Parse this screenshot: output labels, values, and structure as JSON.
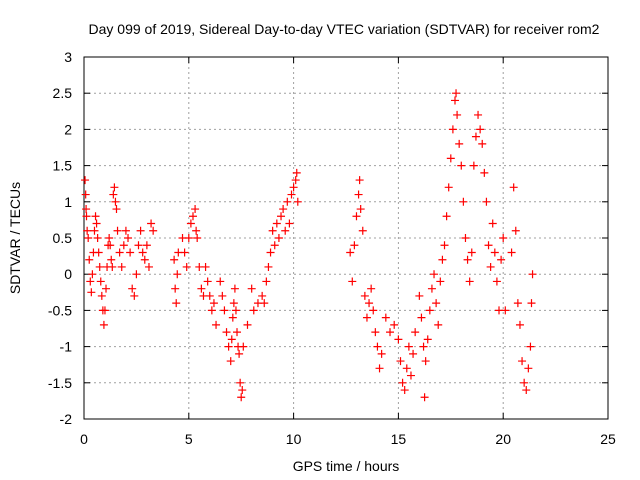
{
  "chart_data": {
    "type": "scatter",
    "title": "Day 099 of 2019, Sidereal Day-to-day VTEC variation (SDTVAR) for receiver rom2",
    "xlabel": "GPS time / hours",
    "ylabel": "SDTVAR / TECUs",
    "xlim": [
      0,
      25
    ],
    "ylim": [
      -2,
      3
    ],
    "xticks": [
      0,
      5,
      10,
      15,
      20,
      25
    ],
    "yticks": [
      -2,
      -1.5,
      -1,
      -0.5,
      0,
      0.5,
      1,
      1.5,
      2,
      2.5,
      3
    ],
    "xtick_labels": [
      "0",
      "5",
      "10",
      "15",
      "20",
      "25"
    ],
    "ytick_labels": [
      "-2",
      "-1.5",
      "-1",
      "-0.5",
      "0",
      "0.5",
      "1",
      "1.5",
      "2",
      "2.5",
      "3"
    ],
    "grid": true,
    "marker": "plus",
    "color": "#ff0000",
    "series": [
      {
        "name": "rom2",
        "points": [
          [
            0.05,
            1.3
          ],
          [
            0.08,
            1.1
          ],
          [
            0.1,
            0.9
          ],
          [
            0.12,
            0.8
          ],
          [
            0.15,
            0.6
          ],
          [
            0.2,
            0.5
          ],
          [
            0.25,
            0.2
          ],
          [
            0.3,
            -0.1
          ],
          [
            0.35,
            -0.25
          ],
          [
            0.4,
            0.0
          ],
          [
            0.45,
            0.3
          ],
          [
            0.5,
            0.6
          ],
          [
            0.55,
            0.8
          ],
          [
            0.6,
            0.7
          ],
          [
            0.65,
            0.5
          ],
          [
            0.7,
            0.3
          ],
          [
            0.75,
            0.1
          ],
          [
            0.8,
            -0.1
          ],
          [
            0.85,
            -0.3
          ],
          [
            0.9,
            -0.5
          ],
          [
            0.95,
            -0.7
          ],
          [
            1.0,
            -0.5
          ],
          [
            1.05,
            -0.2
          ],
          [
            1.1,
            0.1
          ],
          [
            1.15,
            0.4
          ],
          [
            1.2,
            0.5
          ],
          [
            1.25,
            0.4
          ],
          [
            1.3,
            0.2
          ],
          [
            1.35,
            0.1
          ],
          [
            1.4,
            1.1
          ],
          [
            1.45,
            1.2
          ],
          [
            1.5,
            1.0
          ],
          [
            1.55,
            0.9
          ],
          [
            1.6,
            0.6
          ],
          [
            1.7,
            0.3
          ],
          [
            1.8,
            0.1
          ],
          [
            1.9,
            0.4
          ],
          [
            2.0,
            0.6
          ],
          [
            2.1,
            0.5
          ],
          [
            2.2,
            0.3
          ],
          [
            2.3,
            -0.2
          ],
          [
            2.4,
            -0.3
          ],
          [
            2.5,
            0.0
          ],
          [
            2.6,
            0.4
          ],
          [
            2.7,
            0.6
          ],
          [
            2.8,
            0.3
          ],
          [
            2.9,
            0.2
          ],
          [
            3.0,
            0.4
          ],
          [
            3.1,
            0.1
          ],
          [
            3.2,
            0.7
          ],
          [
            3.3,
            0.6
          ],
          [
            4.3,
            0.2
          ],
          [
            4.35,
            -0.2
          ],
          [
            4.4,
            -0.4
          ],
          [
            4.45,
            0.0
          ],
          [
            4.5,
            0.3
          ],
          [
            4.7,
            0.5
          ],
          [
            4.8,
            0.3
          ],
          [
            4.9,
            0.1
          ],
          [
            5.0,
            0.5
          ],
          [
            5.1,
            0.7
          ],
          [
            5.2,
            0.8
          ],
          [
            5.3,
            0.9
          ],
          [
            5.35,
            0.6
          ],
          [
            5.4,
            0.5
          ],
          [
            5.5,
            0.1
          ],
          [
            5.6,
            -0.2
          ],
          [
            5.7,
            -0.3
          ],
          [
            5.8,
            0.1
          ],
          [
            5.9,
            -0.1
          ],
          [
            6.0,
            -0.3
          ],
          [
            6.1,
            -0.5
          ],
          [
            6.2,
            -0.4
          ],
          [
            6.3,
            -0.7
          ],
          [
            6.5,
            -0.1
          ],
          [
            6.6,
            -0.3
          ],
          [
            6.7,
            -0.5
          ],
          [
            6.8,
            -0.8
          ],
          [
            6.9,
            -1.0
          ],
          [
            7.0,
            -1.2
          ],
          [
            7.05,
            -0.9
          ],
          [
            7.1,
            -0.6
          ],
          [
            7.15,
            -0.4
          ],
          [
            7.2,
            -0.2
          ],
          [
            7.25,
            -0.5
          ],
          [
            7.3,
            -0.8
          ],
          [
            7.35,
            -1.0
          ],
          [
            7.4,
            -1.1
          ],
          [
            7.45,
            -1.5
          ],
          [
            7.5,
            -1.7
          ],
          [
            7.55,
            -1.6
          ],
          [
            7.6,
            -1.0
          ],
          [
            7.8,
            -0.7
          ],
          [
            8.0,
            -0.2
          ],
          [
            8.1,
            -0.5
          ],
          [
            8.3,
            -0.4
          ],
          [
            8.5,
            -0.3
          ],
          [
            8.6,
            -0.4
          ],
          [
            8.7,
            -0.1
          ],
          [
            8.8,
            0.1
          ],
          [
            8.9,
            0.3
          ],
          [
            9.0,
            0.6
          ],
          [
            9.1,
            0.4
          ],
          [
            9.2,
            0.7
          ],
          [
            9.3,
            0.5
          ],
          [
            9.4,
            0.8
          ],
          [
            9.5,
            0.9
          ],
          [
            9.6,
            0.6
          ],
          [
            9.7,
            1.0
          ],
          [
            9.8,
            0.7
          ],
          [
            9.9,
            1.1
          ],
          [
            10.0,
            1.2
          ],
          [
            10.1,
            1.3
          ],
          [
            10.15,
            1.4
          ],
          [
            10.2,
            1.0
          ],
          [
            12.7,
            0.3
          ],
          [
            12.8,
            -0.1
          ],
          [
            12.9,
            0.4
          ],
          [
            13.0,
            0.8
          ],
          [
            13.1,
            1.1
          ],
          [
            13.15,
            1.3
          ],
          [
            13.2,
            0.9
          ],
          [
            13.3,
            0.6
          ],
          [
            13.4,
            -0.3
          ],
          [
            13.5,
            -0.6
          ],
          [
            13.6,
            -0.4
          ],
          [
            13.7,
            -0.2
          ],
          [
            13.8,
            -0.5
          ],
          [
            13.9,
            -0.8
          ],
          [
            14.0,
            -1.0
          ],
          [
            14.1,
            -1.3
          ],
          [
            14.2,
            -1.1
          ],
          [
            14.4,
            -0.6
          ],
          [
            14.6,
            -0.8
          ],
          [
            14.8,
            -0.7
          ],
          [
            15.0,
            -0.9
          ],
          [
            15.1,
            -1.2
          ],
          [
            15.2,
            -1.5
          ],
          [
            15.3,
            -1.6
          ],
          [
            15.4,
            -1.3
          ],
          [
            15.5,
            -1.0
          ],
          [
            15.6,
            -1.4
          ],
          [
            15.7,
            -1.1
          ],
          [
            15.8,
            -0.8
          ],
          [
            16.0,
            -0.3
          ],
          [
            16.1,
            -0.6
          ],
          [
            16.2,
            -1.0
          ],
          [
            16.25,
            -1.7
          ],
          [
            16.3,
            -1.2
          ],
          [
            16.4,
            -0.9
          ],
          [
            16.5,
            -0.5
          ],
          [
            16.6,
            -0.2
          ],
          [
            16.7,
            0.0
          ],
          [
            16.8,
            -0.4
          ],
          [
            16.9,
            -0.7
          ],
          [
            17.0,
            -0.1
          ],
          [
            17.1,
            0.2
          ],
          [
            17.2,
            0.4
          ],
          [
            17.3,
            0.8
          ],
          [
            17.4,
            1.2
          ],
          [
            17.5,
            1.6
          ],
          [
            17.6,
            2.0
          ],
          [
            17.7,
            2.4
          ],
          [
            17.75,
            2.5
          ],
          [
            17.8,
            2.2
          ],
          [
            17.9,
            1.8
          ],
          [
            18.0,
            1.5
          ],
          [
            18.1,
            1.0
          ],
          [
            18.2,
            0.5
          ],
          [
            18.3,
            0.2
          ],
          [
            18.4,
            -0.1
          ],
          [
            18.5,
            0.3
          ],
          [
            18.6,
            1.5
          ],
          [
            18.7,
            1.9
          ],
          [
            18.8,
            2.2
          ],
          [
            18.9,
            2.0
          ],
          [
            19.0,
            1.8
          ],
          [
            19.1,
            1.4
          ],
          [
            19.2,
            1.0
          ],
          [
            19.3,
            0.4
          ],
          [
            19.4,
            0.1
          ],
          [
            19.5,
            0.7
          ],
          [
            19.6,
            0.3
          ],
          [
            19.7,
            -0.1
          ],
          [
            19.8,
            -0.5
          ],
          [
            19.9,
            0.2
          ],
          [
            20.0,
            0.5
          ],
          [
            20.1,
            -0.5
          ],
          [
            20.4,
            0.3
          ],
          [
            20.5,
            1.2
          ],
          [
            20.6,
            0.6
          ],
          [
            20.7,
            -0.4
          ],
          [
            20.8,
            -0.7
          ],
          [
            20.9,
            -1.2
          ],
          [
            21.0,
            -1.5
          ],
          [
            21.1,
            -1.6
          ],
          [
            21.2,
            -1.3
          ],
          [
            21.3,
            -1.0
          ],
          [
            21.35,
            -0.4
          ],
          [
            21.4,
            0.0
          ]
        ]
      }
    ]
  }
}
